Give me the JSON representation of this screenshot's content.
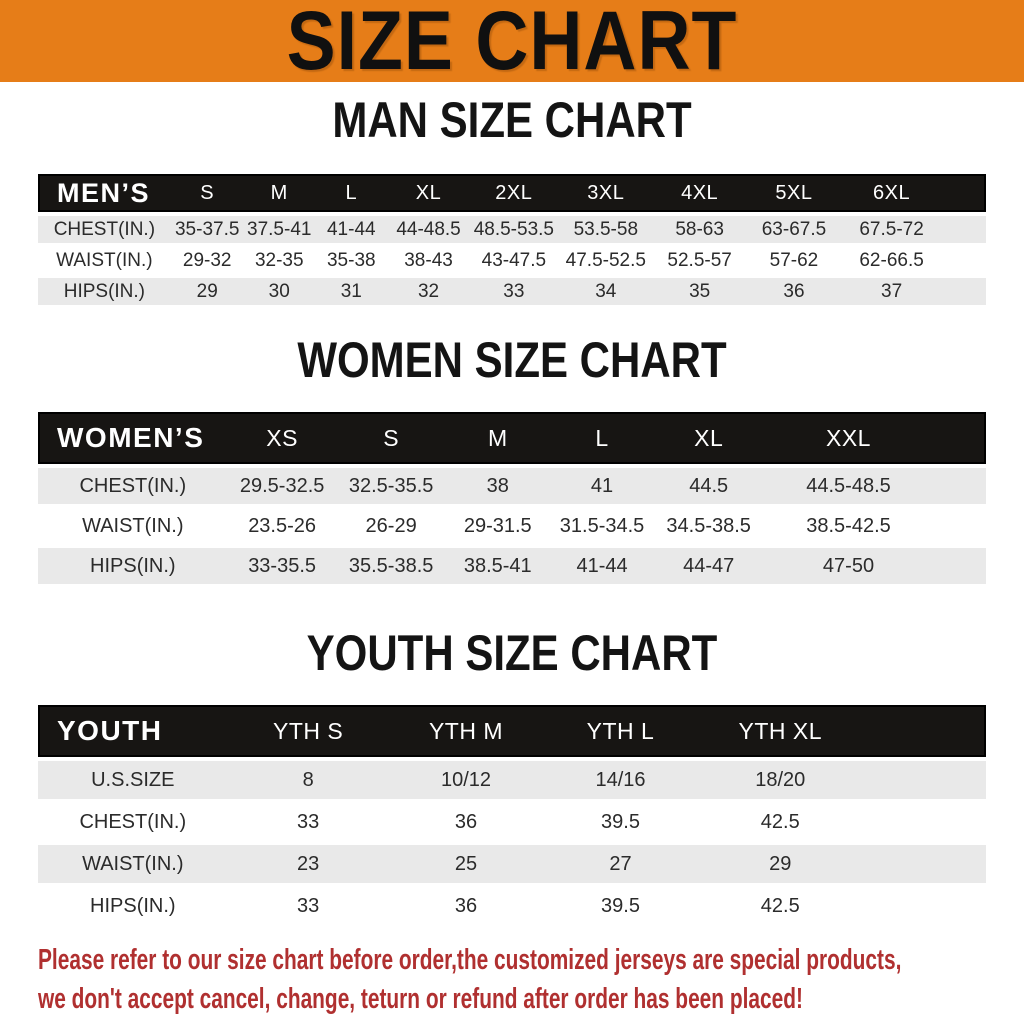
{
  "banner": {
    "title": "SIZE CHART"
  },
  "sections": {
    "men": {
      "title": "MAN SIZE CHART",
      "table": {
        "header": [
          "MEN’S",
          "S",
          "M",
          "L",
          "XL",
          "2XL",
          "3XL",
          "4XL",
          "5XL",
          "6XL"
        ],
        "rows": [
          [
            "CHEST(IN.)",
            "35-37.5",
            "37.5-41",
            "41-44",
            "44-48.5",
            "48.5-53.5",
            "53.5-58",
            "58-63",
            "63-67.5",
            "67.5-72"
          ],
          [
            "WAIST(IN.)",
            "29-32",
            "32-35",
            "35-38",
            "38-43",
            "43-47.5",
            "47.5-52.5",
            "52.5-57",
            "57-62",
            "62-66.5"
          ],
          [
            "HIPS(IN.)",
            "29",
            "30",
            "31",
            "32",
            "33",
            "34",
            "35",
            "36",
            "37"
          ]
        ]
      }
    },
    "women": {
      "title": "WOMEN SIZE CHART",
      "table": {
        "header": [
          "WOMEN’S",
          "XS",
          "S",
          "M",
          "L",
          "XL",
          "XXL"
        ],
        "rows": [
          [
            "CHEST(IN.)",
            "29.5-32.5",
            "32.5-35.5",
            "38",
            "41",
            "44.5",
            "44.5-48.5"
          ],
          [
            "WAIST(IN.)",
            "23.5-26",
            "26-29",
            "29-31.5",
            "31.5-34.5",
            "34.5-38.5",
            "38.5-42.5"
          ],
          [
            "HIPS(IN.)",
            "33-35.5",
            "35.5-38.5",
            "38.5-41",
            "41-44",
            "44-47",
            "47-50"
          ]
        ]
      }
    },
    "youth": {
      "title": "YOUTH SIZE CHART",
      "table": {
        "header": [
          "YOUTH",
          "YTH S",
          "YTH M",
          "YTH L",
          "YTH XL"
        ],
        "rows": [
          [
            "U.S.SIZE",
            "8",
            "10/12",
            "14/16",
            "18/20"
          ],
          [
            "CHEST(IN.)",
            "33",
            "36",
            "39.5",
            "42.5"
          ],
          [
            "WAIST(IN.)",
            "23",
            "25",
            "27",
            "29"
          ],
          [
            "HIPS(IN.)",
            "33",
            "36",
            "39.5",
            "42.5"
          ]
        ]
      }
    }
  },
  "footer": {
    "lines": [
      "Please refer to our size chart before order,the customized jerseys are special products,",
      "we don't accept cancel, change, teturn or refund after order has been placed!"
    ]
  },
  "colors": {
    "banner_orange": "#e67d18",
    "table_header_black": "#171513",
    "row_gray": "#e9e9e9",
    "footer_red": "#b03030"
  }
}
